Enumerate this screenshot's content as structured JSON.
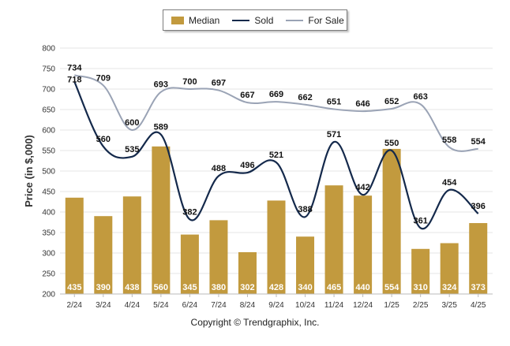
{
  "chart_data": {
    "type": "bar",
    "categories": [
      "2/24",
      "3/24",
      "4/24",
      "5/24",
      "6/24",
      "7/24",
      "8/24",
      "9/24",
      "10/24",
      "11/24",
      "12/24",
      "1/25",
      "2/25",
      "3/25",
      "4/25"
    ],
    "series": [
      {
        "name": "Median",
        "type": "bar",
        "color": "#c29a3e",
        "values": [
          435,
          390,
          438,
          560,
          345,
          380,
          302,
          428,
          340,
          465,
          440,
          554,
          310,
          324,
          373
        ]
      },
      {
        "name": "Sold",
        "type": "line",
        "color": "#14294b",
        "values": [
          718,
          560,
          535,
          589,
          382,
          488,
          496,
          521,
          388,
          571,
          442,
          550,
          361,
          454,
          396
        ]
      },
      {
        "name": "For Sale",
        "type": "line",
        "color": "#9aa3b5",
        "values": [
          734,
          709,
          600,
          693,
          700,
          697,
          667,
          669,
          662,
          651,
          646,
          652,
          663,
          558,
          554
        ]
      }
    ],
    "ylabel": "Price (in $,000)",
    "xlabel": "",
    "ylim": [
      200,
      800
    ],
    "yticks": [
      200,
      250,
      300,
      350,
      400,
      450,
      500,
      550,
      600,
      650,
      700,
      750,
      800
    ],
    "grid": true,
    "legend_position": "top-center"
  },
  "footer": {
    "copyright": "Copyright © Trendgraphix, Inc."
  }
}
